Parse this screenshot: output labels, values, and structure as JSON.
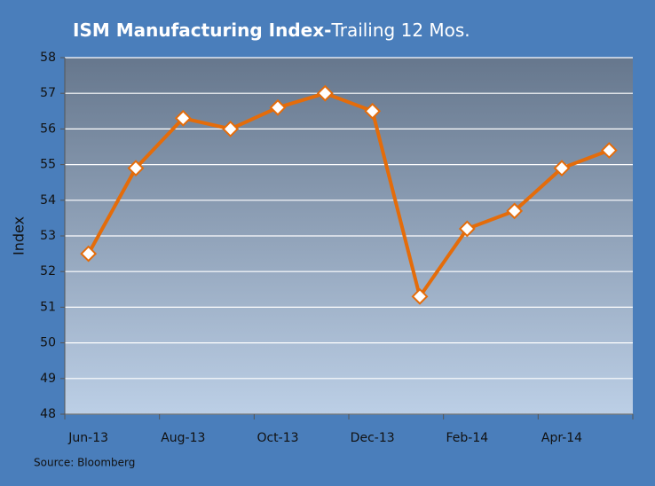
{
  "chart_data": {
    "type": "line",
    "title": [
      "ISM Manufacturing Index-",
      "Trailing 12 Mos."
    ],
    "y_label": "Index",
    "source": "Source: Bloomberg",
    "categories": [
      "Jun-13",
      null,
      "Aug-13",
      null,
      "Oct-13",
      null,
      "Dec-13",
      null,
      "Feb-14",
      null,
      "Apr-14",
      null
    ],
    "series": [
      {
        "name": "ISM Manufacturing Index",
        "color": "#e46c0a",
        "values": [
          52.5,
          54.9,
          56.3,
          56.0,
          56.6,
          57.0,
          56.5,
          51.3,
          53.2,
          53.7,
          54.9,
          55.4
        ]
      }
    ],
    "ylim": [
      48,
      58
    ],
    "yticks": [
      48,
      49,
      50,
      51,
      52,
      53,
      54,
      55,
      56,
      57,
      58
    ],
    "grid": true
  }
}
